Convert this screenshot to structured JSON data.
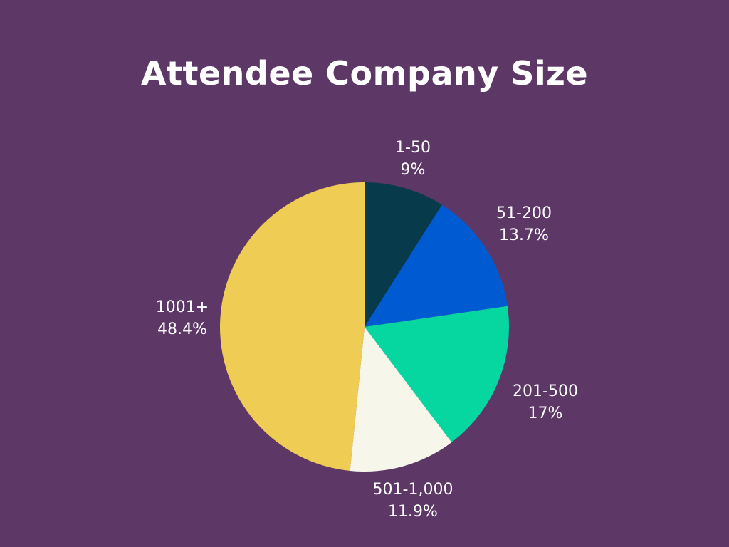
{
  "chart_data": {
    "type": "pie",
    "title": "Attendee Company Size",
    "categories": [
      "1-50",
      "51-200",
      "201-500",
      "501-1,000",
      "1001+"
    ],
    "values": [
      9,
      13.7,
      17,
      11.9,
      48.4
    ],
    "value_labels": [
      "9%",
      "13.7%",
      "17%",
      "11.9%",
      "48.4%"
    ],
    "colors": [
      "#073b4c",
      "#005bd3",
      "#06d6a0",
      "#f6f7ea",
      "#efcd55"
    ],
    "start_angle": "12 o'clock",
    "direction": "clockwise",
    "legend": "none (labels outside slices)"
  },
  "background_color": "#5d3867"
}
